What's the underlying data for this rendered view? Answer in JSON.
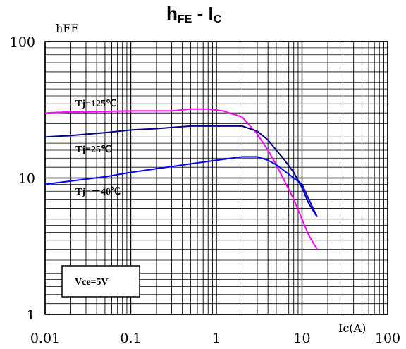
{
  "chart_data": {
    "type": "line",
    "title": {
      "main": "h",
      "main_sub": "FE",
      "sep": " - ",
      "second": "I",
      "second_sub": "C"
    },
    "ylabel": "hFE",
    "xlabel": "Ic(A)",
    "x_scale": "log",
    "y_scale": "log",
    "xlim": [
      0.01,
      100
    ],
    "ylim": [
      1,
      100
    ],
    "x_ticks": [
      0.01,
      0.1,
      1,
      10,
      100
    ],
    "x_tick_labels": [
      "0.01",
      "0.1",
      "1",
      "10",
      "100"
    ],
    "y_ticks": [
      1,
      10,
      100
    ],
    "y_tick_labels": [
      "1",
      "10",
      "100"
    ],
    "grid": true,
    "condition_box": "Vce=5V",
    "series": [
      {
        "name": "Tj=125℃",
        "color": "#ff00ff",
        "x": [
          0.01,
          0.02,
          0.1,
          0.3,
          0.5,
          0.8,
          1.2,
          2.0,
          3.0,
          4.0,
          5.0,
          6.0,
          8.0,
          10.0,
          12.0,
          15.0
        ],
        "y": [
          30,
          30.5,
          31,
          31,
          32,
          32,
          31,
          28,
          21,
          16,
          12.5,
          10,
          7,
          5,
          3.8,
          3
        ]
      },
      {
        "name": "Tj=25℃",
        "color": "#000080",
        "x": [
          0.01,
          0.02,
          0.05,
          0.1,
          0.2,
          0.5,
          1.0,
          2.0,
          3.0,
          4.0,
          5.0,
          6.0,
          8.0,
          10.0,
          12.0,
          15.0
        ],
        "y": [
          20,
          20.5,
          21.5,
          22.5,
          23,
          24,
          24,
          24,
          22,
          19,
          16,
          14,
          11,
          8.5,
          6.5,
          5.2
        ]
      },
      {
        "name": "Tj=－40℃",
        "color": "#0000ff",
        "x": [
          0.01,
          0.02,
          0.05,
          0.1,
          0.2,
          0.5,
          1.0,
          2.0,
          3.0,
          4.0,
          5.0,
          6.0,
          8.0,
          10.0,
          12.0,
          15.0
        ],
        "y": [
          9,
          9.5,
          10.2,
          11,
          11.7,
          12.7,
          13.5,
          14.3,
          14.3,
          13.5,
          12.5,
          11.5,
          10,
          9,
          7,
          5.2
        ]
      }
    ]
  }
}
